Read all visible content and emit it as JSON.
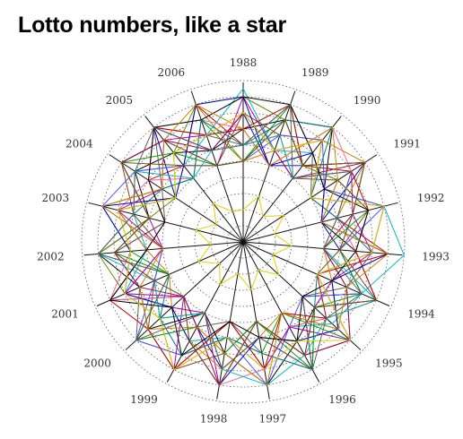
{
  "chart_data": {
    "type": "radar",
    "title": "Lotto numbers, like a star",
    "categories": [
      "1988",
      "1989",
      "1990",
      "1991",
      "1992",
      "1993",
      "1994",
      "1995",
      "1996",
      "1997",
      "1998",
      "1999",
      "2000",
      "2001",
      "2002",
      "2003",
      "2004",
      "2005",
      "2006"
    ],
    "grid": true,
    "grid_style": "dotted concentric rings",
    "rlim": [
      0,
      10
    ],
    "colors": [
      "#c00000",
      "#0000c0",
      "#00a000",
      "#b000b0",
      "#00b8c8",
      "#000000",
      "#d08000",
      "#7a4a1a",
      "#e0d000",
      "#606060",
      "#ff60a0",
      "#6a8a00",
      "#5050ff",
      "#a00050",
      "#008080"
    ],
    "series": [
      {
        "values": [
          6,
          7,
          8,
          5,
          6,
          9,
          5,
          7,
          6,
          8,
          5,
          9,
          7,
          6,
          8,
          5,
          7,
          6,
          9
        ]
      },
      {
        "values": [
          8,
          5,
          6,
          9,
          5,
          6,
          8,
          5,
          9,
          6,
          8,
          6,
          5,
          9,
          6,
          8,
          5,
          9,
          6
        ]
      },
      {
        "values": [
          5,
          9,
          6,
          7,
          8,
          5,
          7,
          9,
          5,
          7,
          6,
          8,
          9,
          5,
          7,
          9,
          6,
          5,
          8
        ]
      },
      {
        "values": [
          9,
          6,
          5,
          8,
          7,
          8,
          6,
          6,
          8,
          5,
          9,
          5,
          6,
          8,
          5,
          6,
          9,
          8,
          5
        ]
      },
      {
        "values": [
          9.5,
          6,
          7,
          6,
          9,
          10,
          8,
          7.5,
          6,
          8,
          6,
          7,
          6,
          8,
          6,
          7,
          8,
          6,
          7
        ]
      },
      {
        "values": [
          7,
          8,
          9,
          6,
          5,
          7,
          9,
          6,
          7,
          9,
          7,
          5,
          8,
          7,
          9,
          6,
          8,
          7,
          6
        ]
      },
      {
        "values": [
          5,
          6,
          8,
          9,
          6,
          5,
          6,
          8,
          5,
          6,
          8,
          7,
          6,
          5,
          6,
          8,
          5,
          6,
          9
        ]
      },
      {
        "values": [
          8,
          7,
          5,
          7,
          8,
          6,
          5,
          9,
          8,
          5,
          7,
          9,
          8,
          6,
          5,
          7,
          9,
          8,
          5
        ]
      },
      {
        "values": [
          2,
          3,
          2,
          3,
          2,
          3,
          2,
          3,
          2,
          3,
          2,
          3,
          2,
          3,
          2,
          3,
          2,
          3,
          2
        ]
      },
      {
        "values": [
          6,
          9,
          7,
          5,
          9,
          8,
          7,
          5,
          9,
          7,
          5,
          6,
          9,
          7,
          8,
          5,
          6,
          9,
          7
        ]
      },
      {
        "values": [
          7,
          5,
          9,
          8,
          6,
          7,
          9,
          7,
          6,
          8,
          9,
          7,
          5,
          9,
          7,
          8,
          7,
          5,
          8
        ]
      },
      {
        "values": [
          9,
          8,
          6,
          7,
          5,
          9,
          6,
          8,
          7,
          6,
          8,
          5,
          7,
          8,
          9,
          6,
          5,
          7,
          9
        ]
      },
      {
        "values": [
          5,
          7,
          8,
          6,
          9,
          6,
          8,
          5,
          6,
          9,
          6,
          8,
          9,
          6,
          5,
          9,
          8,
          6,
          5
        ]
      },
      {
        "values": [
          8,
          6,
          5,
          9,
          7,
          5,
          7,
          9,
          8,
          5,
          9,
          6,
          5,
          7,
          8,
          6,
          9,
          8,
          6
        ]
      },
      {
        "values": [
          6,
          8,
          9,
          5,
          6,
          8,
          5,
          6,
          9,
          7,
          6,
          8,
          7,
          5,
          9,
          7,
          6,
          5,
          8
        ]
      },
      {
        "values": [
          7,
          9,
          6,
          8,
          8,
          7,
          9,
          7,
          5,
          8,
          5,
          9,
          8,
          9,
          6,
          5,
          7,
          9,
          7
        ]
      },
      {
        "values": [
          9,
          5,
          7,
          6,
          5,
          9,
          6,
          8,
          7,
          6,
          9,
          7,
          6,
          8,
          7,
          9,
          5,
          6,
          9
        ]
      },
      {
        "values": [
          5,
          8,
          6,
          9,
          7,
          6,
          8,
          6,
          9,
          5,
          7,
          6,
          9,
          5,
          8,
          6,
          9,
          7,
          5
        ]
      },
      {
        "values": [
          8,
          6,
          8,
          5,
          9,
          8,
          5,
          9,
          6,
          8,
          6,
          9,
          5,
          8,
          5,
          8,
          6,
          8,
          7
        ]
      },
      {
        "values": [
          6,
          7,
          5,
          8,
          6,
          5,
          9,
          7,
          8,
          9,
          8,
          5,
          7,
          6,
          9,
          7,
          8,
          5,
          6
        ]
      },
      {
        "values": [
          9,
          9,
          7,
          6,
          8,
          7,
          6,
          5,
          7,
          6,
          5,
          8,
          6,
          9,
          6,
          5,
          7,
          9,
          8
        ]
      },
      {
        "values": [
          7,
          5,
          9,
          7,
          5,
          9,
          7,
          8,
          5,
          9,
          7,
          6,
          8,
          7,
          5,
          9,
          6,
          8,
          9
        ]
      },
      {
        "values": [
          5,
          8,
          6,
          9,
          7,
          6,
          9,
          6,
          8,
          5,
          9,
          7,
          5,
          6,
          8,
          6,
          9,
          6,
          5
        ]
      },
      {
        "values": [
          8,
          6,
          8,
          5,
          9,
          8,
          5,
          9,
          7,
          8,
          6,
          9,
          7,
          8,
          7,
          8,
          5,
          7,
          7
        ]
      },
      {
        "values": [
          6,
          9,
          5,
          8,
          6,
          5,
          8,
          7,
          9,
          6,
          8,
          5,
          9,
          5,
          9,
          7,
          8,
          9,
          6
        ]
      }
    ]
  }
}
